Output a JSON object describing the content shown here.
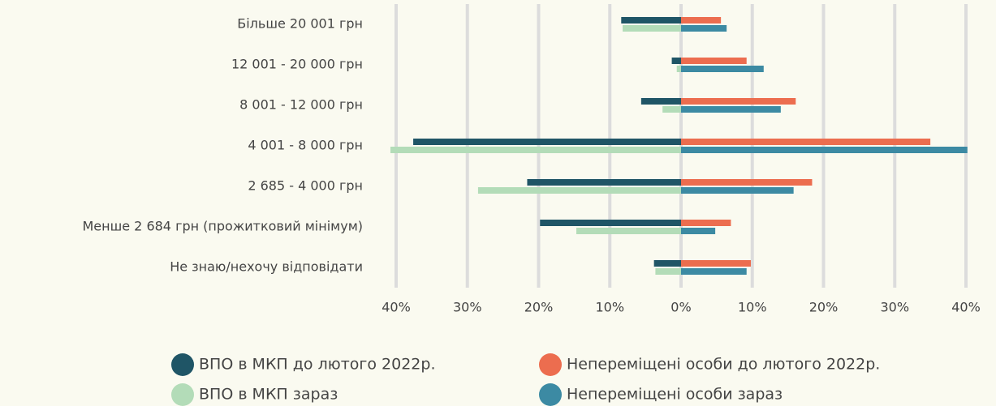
{
  "chart_data": {
    "type": "butterfly-bar",
    "categories": [
      "Більше 20 001 грн",
      "12 001 - 20 000 грн",
      "8 001 - 12 000 грн",
      "4 001 - 8 000 грн",
      "2 685 - 4 000 грн",
      "Менше 2 684 грн (прожитковий мінімум)",
      "Не знаю/нехочу відповідати"
    ],
    "series": [
      {
        "name": "ВПО в МКП до лютого 2022р.",
        "color": "#1f5566",
        "values": [
          -8.4,
          -1.3,
          -5.6,
          -37.6,
          -21.6,
          -19.8,
          -3.8
        ]
      },
      {
        "name": "ВПО в МКП зараз",
        "color": "#b3dcb8",
        "values": [
          -8.2,
          -0.6,
          -2.6,
          -40.8,
          -28.5,
          -14.7,
          -3.6
        ]
      },
      {
        "name": "Непереміщені особи до лютого 2022р.",
        "color": "#ec6d4f",
        "values": [
          5.6,
          9.2,
          16.1,
          35.0,
          18.4,
          7.0,
          9.8
        ]
      },
      {
        "name": "Непереміщені особи зараз",
        "color": "#3c8aa3",
        "values": [
          6.4,
          11.6,
          14.0,
          40.2,
          15.8,
          4.8,
          9.2
        ]
      }
    ],
    "xlim": [
      -40,
      40
    ],
    "xticks": [
      {
        "value": -40,
        "label": "40%"
      },
      {
        "value": -30,
        "label": "30%"
      },
      {
        "value": -20,
        "label": "20%"
      },
      {
        "value": -10,
        "label": "10%"
      },
      {
        "value": 0,
        "label": "0%"
      },
      {
        "value": 10,
        "label": "10%"
      },
      {
        "value": 20,
        "label": "20%"
      },
      {
        "value": 30,
        "label": "30%"
      },
      {
        "value": 40,
        "label": "40%"
      }
    ],
    "grid": true
  }
}
